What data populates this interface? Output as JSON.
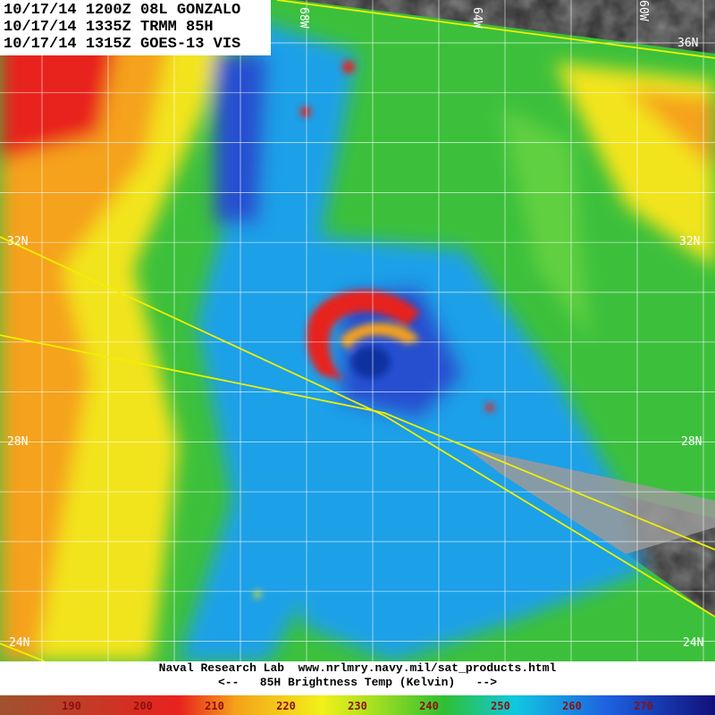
{
  "header": {
    "lines": [
      "10/17/14 1200Z 08L GONZALO",
      "10/17/14 1335Z TRMM 85H",
      "10/17/14 1315Z GOES-13 VIS"
    ]
  },
  "map": {
    "lat_labels": [
      "36N",
      "32N",
      "28N",
      "24N"
    ],
    "lon_labels": [
      "68W",
      "64W",
      "60W"
    ]
  },
  "footer": {
    "credit": "Naval Research Lab  www.nrlmry.navy.mil/sat_products.html",
    "scale_title": "<--   85H Brightness Temp (Kelvin)   -->"
  },
  "colorbar": {
    "ticks": [
      190,
      200,
      210,
      220,
      230,
      240,
      250,
      260,
      270
    ]
  }
}
